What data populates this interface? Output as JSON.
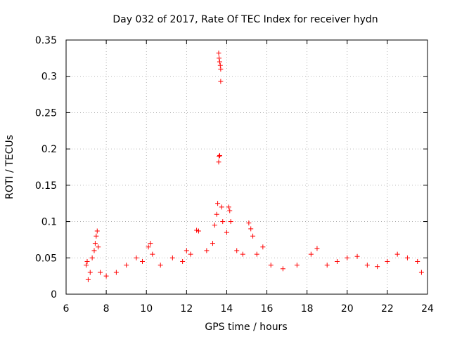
{
  "chart_data": {
    "type": "scatter",
    "title": "Day 032 of 2017, Rate Of TEC Index for receiver hydn",
    "xlabel": "GPS time / hours",
    "ylabel": "ROTI / TECUs",
    "xlim": [
      6,
      24
    ],
    "ylim": [
      0,
      0.35
    ],
    "xticks": [
      "6",
      "8",
      "10",
      "12",
      "14",
      "16",
      "18",
      "20",
      "22",
      "24"
    ],
    "yticks": [
      "0",
      "0.05",
      "0.1",
      "0.15",
      "0.2",
      "0.25",
      "0.3",
      "0.35"
    ],
    "grid": true,
    "marker": "+",
    "color": "#ff0000",
    "series": [
      {
        "name": "ROTI",
        "points": [
          [
            7.0,
            0.04
          ],
          [
            7.05,
            0.045
          ],
          [
            7.1,
            0.02
          ],
          [
            7.2,
            0.03
          ],
          [
            7.3,
            0.05
          ],
          [
            7.4,
            0.06
          ],
          [
            7.45,
            0.07
          ],
          [
            7.5,
            0.08
          ],
          [
            7.55,
            0.087
          ],
          [
            7.6,
            0.065
          ],
          [
            7.7,
            0.03
          ],
          [
            8.0,
            0.025
          ],
          [
            8.5,
            0.03
          ],
          [
            9.0,
            0.04
          ],
          [
            9.5,
            0.05
          ],
          [
            9.8,
            0.045
          ],
          [
            10.1,
            0.065
          ],
          [
            10.2,
            0.07
          ],
          [
            10.3,
            0.055
          ],
          [
            10.7,
            0.04
          ],
          [
            11.3,
            0.05
          ],
          [
            11.8,
            0.045
          ],
          [
            12.0,
            0.06
          ],
          [
            12.2,
            0.055
          ],
          [
            12.5,
            0.088
          ],
          [
            12.6,
            0.087
          ],
          [
            13.0,
            0.06
          ],
          [
            13.3,
            0.07
          ],
          [
            13.4,
            0.095
          ],
          [
            13.5,
            0.11
          ],
          [
            13.55,
            0.125
          ],
          [
            13.6,
            0.182
          ],
          [
            13.62,
            0.19
          ],
          [
            13.65,
            0.191
          ],
          [
            13.6,
            0.332
          ],
          [
            13.62,
            0.325
          ],
          [
            13.65,
            0.32
          ],
          [
            13.68,
            0.315
          ],
          [
            13.7,
            0.31
          ],
          [
            13.7,
            0.293
          ],
          [
            13.75,
            0.12
          ],
          [
            13.8,
            0.1
          ],
          [
            14.0,
            0.085
          ],
          [
            14.1,
            0.12
          ],
          [
            14.15,
            0.115
          ],
          [
            14.2,
            0.1
          ],
          [
            14.5,
            0.06
          ],
          [
            14.8,
            0.055
          ],
          [
            15.1,
            0.098
          ],
          [
            15.2,
            0.09
          ],
          [
            15.3,
            0.08
          ],
          [
            15.5,
            0.055
          ],
          [
            15.8,
            0.065
          ],
          [
            16.2,
            0.04
          ],
          [
            16.8,
            0.035
          ],
          [
            17.5,
            0.04
          ],
          [
            18.2,
            0.055
          ],
          [
            18.5,
            0.063
          ],
          [
            19.0,
            0.04
          ],
          [
            19.5,
            0.045
          ],
          [
            20.0,
            0.05
          ],
          [
            20.5,
            0.052
          ],
          [
            21.0,
            0.04
          ],
          [
            21.5,
            0.038
          ],
          [
            22.0,
            0.045
          ],
          [
            22.5,
            0.055
          ],
          [
            23.0,
            0.05
          ],
          [
            23.5,
            0.045
          ],
          [
            23.7,
            0.03
          ]
        ]
      }
    ]
  }
}
